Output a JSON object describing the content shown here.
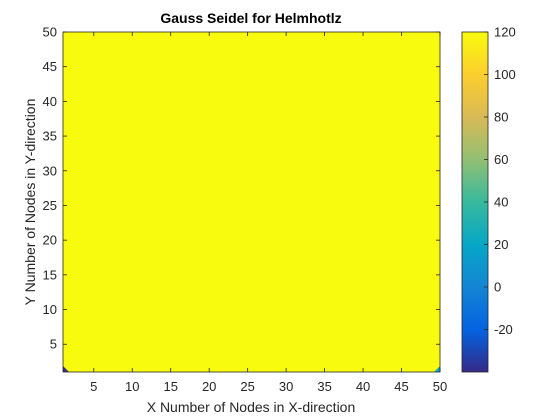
{
  "chart_data": {
    "type": "heatmap",
    "title": "Gauss Seidel for Helmhotlz",
    "xlabel": "X Number of Nodes in X-direction",
    "ylabel": "Y Number of Nodes in Y-direction",
    "xlim": [
      1,
      50
    ],
    "ylim": [
      1,
      50
    ],
    "xticks": [
      5,
      10,
      15,
      20,
      25,
      30,
      35,
      40,
      45,
      50
    ],
    "yticks": [
      5,
      10,
      15,
      20,
      25,
      30,
      35,
      40,
      45,
      50
    ],
    "colorbar": {
      "colormap": "parula",
      "range": [
        -40,
        120
      ],
      "ticks": [
        -20,
        0,
        20,
        40,
        60,
        80,
        100,
        120
      ]
    },
    "field": {
      "fill_value": 120,
      "corner_values": [
        {
          "x": 1,
          "y": 1,
          "value": -40
        },
        {
          "x": 50,
          "y": 1,
          "value": 20
        }
      ]
    },
    "grid": false
  },
  "colors": {
    "parula": [
      "#352a87",
      "#0363e1",
      "#1485d4",
      "#06a7c6",
      "#38b99e",
      "#92bf73",
      "#d9ba56",
      "#fcce2e",
      "#f9fb0e"
    ],
    "axis": "#262626"
  }
}
